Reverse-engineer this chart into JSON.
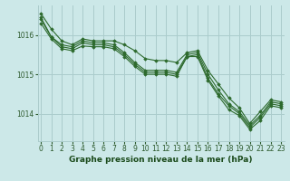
{
  "bg_color": "#cce8e8",
  "grid_color": "#aacccc",
  "line_color": "#2d6a2d",
  "marker_color": "#2d6a2d",
  "xlabel": "Graphe pression niveau de la mer (hPa)",
  "xlabel_color": "#1a4a1a",
  "tick_color": "#2d5a2d",
  "yticks": [
    1014,
    1015,
    1016
  ],
  "ylim": [
    1013.3,
    1016.75
  ],
  "xlim": [
    -0.3,
    23.3
  ],
  "xticks": [
    0,
    1,
    2,
    3,
    4,
    5,
    6,
    7,
    8,
    9,
    10,
    11,
    12,
    13,
    14,
    15,
    16,
    17,
    18,
    19,
    20,
    21,
    22,
    23
  ],
  "series": [
    [
      1016.55,
      1016.15,
      1015.85,
      1015.75,
      1015.9,
      1015.85,
      1015.85,
      1015.85,
      1015.75,
      1015.6,
      1015.4,
      1015.35,
      1015.35,
      1015.3,
      1015.55,
      1015.6,
      1015.1,
      1014.75,
      1014.4,
      1014.15,
      1013.75,
      1014.05,
      1014.35,
      1014.3
    ],
    [
      1016.45,
      1015.95,
      1015.75,
      1015.7,
      1015.85,
      1015.8,
      1015.8,
      1015.75,
      1015.55,
      1015.3,
      1015.1,
      1015.1,
      1015.1,
      1015.05,
      1015.5,
      1015.55,
      1015.0,
      1014.6,
      1014.25,
      1014.05,
      1013.7,
      1013.95,
      1014.3,
      1014.25
    ],
    [
      1016.4,
      1015.95,
      1015.7,
      1015.65,
      1015.8,
      1015.75,
      1015.75,
      1015.7,
      1015.5,
      1015.25,
      1015.05,
      1015.05,
      1015.05,
      1015.0,
      1015.45,
      1015.5,
      1014.9,
      1014.5,
      1014.2,
      1014.0,
      1013.65,
      1013.9,
      1014.25,
      1014.2
    ],
    [
      1016.3,
      1015.9,
      1015.65,
      1015.6,
      1015.72,
      1015.7,
      1015.7,
      1015.65,
      1015.45,
      1015.2,
      1015.0,
      1015.0,
      1015.0,
      1014.95,
      1015.45,
      1015.45,
      1014.85,
      1014.45,
      1014.1,
      1013.95,
      1013.6,
      1013.82,
      1014.2,
      1014.15
    ]
  ]
}
